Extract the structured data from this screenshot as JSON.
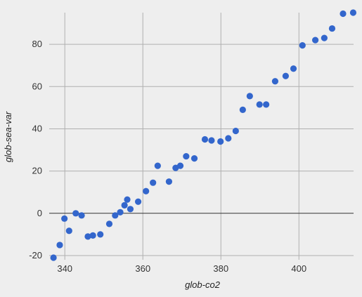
{
  "chart_data": {
    "type": "scatter",
    "xlabel": "glob-co2",
    "ylabel": "glob-sea-var",
    "xlim": [
      336,
      414
    ],
    "ylim": [
      -22,
      95
    ],
    "x_ticks": [
      340,
      360,
      380,
      400
    ],
    "y_ticks": [
      -20,
      0,
      20,
      40,
      60,
      80
    ],
    "grid": true,
    "zero_line": true,
    "point_color": "#3366cc",
    "points": [
      {
        "x": 337.1,
        "y": -21
      },
      {
        "x": 338.7,
        "y": -15
      },
      {
        "x": 339.9,
        "y": -2.5
      },
      {
        "x": 341.1,
        "y": -8.3
      },
      {
        "x": 342.8,
        "y": 0
      },
      {
        "x": 344.3,
        "y": -1
      },
      {
        "x": 345.9,
        "y": -11
      },
      {
        "x": 347.2,
        "y": -10.5
      },
      {
        "x": 349.1,
        "y": -10
      },
      {
        "x": 351.4,
        "y": -5
      },
      {
        "x": 352.9,
        "y": -1
      },
      {
        "x": 354.2,
        "y": 0.5
      },
      {
        "x": 355.3,
        "y": 3.8
      },
      {
        "x": 356.0,
        "y": 6.5
      },
      {
        "x": 356.8,
        "y": 2
      },
      {
        "x": 358.8,
        "y": 5.5
      },
      {
        "x": 360.8,
        "y": 10.5
      },
      {
        "x": 362.6,
        "y": 14.5
      },
      {
        "x": 363.8,
        "y": 22.5
      },
      {
        "x": 366.7,
        "y": 15
      },
      {
        "x": 368.4,
        "y": 21.5
      },
      {
        "x": 369.6,
        "y": 22.5
      },
      {
        "x": 371.1,
        "y": 27
      },
      {
        "x": 373.2,
        "y": 26
      },
      {
        "x": 375.9,
        "y": 35
      },
      {
        "x": 377.6,
        "y": 34.5
      },
      {
        "x": 379.9,
        "y": 34
      },
      {
        "x": 381.9,
        "y": 35.5
      },
      {
        "x": 383.8,
        "y": 39
      },
      {
        "x": 385.6,
        "y": 49
      },
      {
        "x": 387.4,
        "y": 55.5
      },
      {
        "x": 389.9,
        "y": 51.5
      },
      {
        "x": 391.6,
        "y": 51.5
      },
      {
        "x": 393.9,
        "y": 62.5
      },
      {
        "x": 396.6,
        "y": 65
      },
      {
        "x": 398.6,
        "y": 68.5
      },
      {
        "x": 400.9,
        "y": 79.5
      },
      {
        "x": 404.2,
        "y": 82
      },
      {
        "x": 406.5,
        "y": 83
      },
      {
        "x": 408.5,
        "y": 87.5
      },
      {
        "x": 411.3,
        "y": 94.5
      },
      {
        "x": 413.9,
        "y": 95
      }
    ]
  }
}
